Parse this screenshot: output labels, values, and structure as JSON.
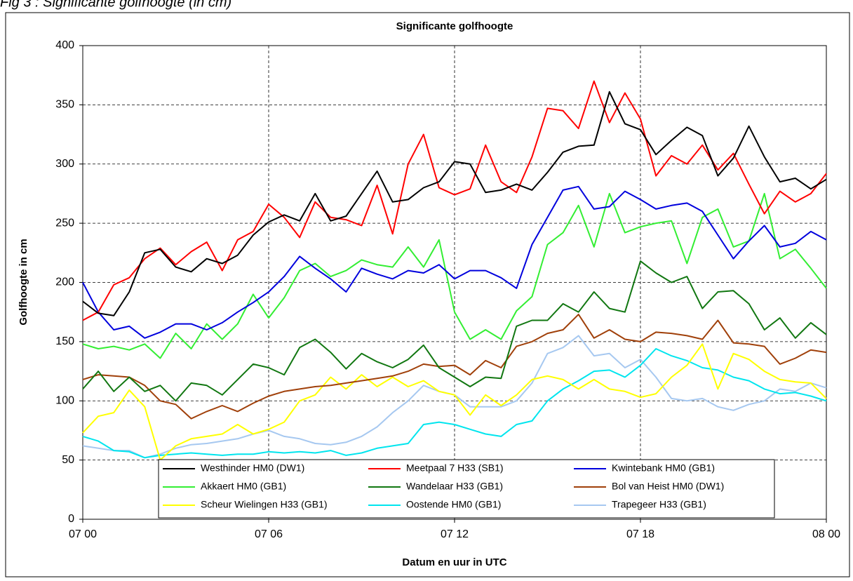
{
  "chart_data": {
    "type": "line",
    "caption": "Fig 3 : Significante golfhoogte (in cm)",
    "title": "Significante golfhoogte",
    "x_label": "Datum en uur in UTC",
    "y_label": "Golfhoogte in cm",
    "xlim": [
      0,
      24
    ],
    "xticks": [
      {
        "value": 0,
        "label": "07 00"
      },
      {
        "value": 6,
        "label": "07 06"
      },
      {
        "value": 12,
        "label": "07 12"
      },
      {
        "value": 18,
        "label": "07 18"
      },
      {
        "value": 24,
        "label": "08 00"
      }
    ],
    "ylim": [
      0,
      400
    ],
    "yticks": [
      0,
      50,
      100,
      150,
      200,
      250,
      300,
      350,
      400
    ],
    "grid": true,
    "legend": "bottom",
    "x": [
      0,
      0.5,
      1,
      1.5,
      2,
      2.5,
      3,
      3.5,
      4,
      4.5,
      5,
      5.5,
      6,
      6.5,
      7,
      7.5,
      8,
      8.5,
      9,
      9.5,
      10,
      10.5,
      11,
      11.5,
      12,
      12.5,
      13,
      13.5,
      14,
      14.5,
      15,
      15.5,
      16,
      16.5,
      17,
      17.5,
      18,
      18.5,
      19,
      19.5,
      20,
      20.5,
      21,
      21.5,
      22,
      22.5,
      23,
      23.5,
      24
    ],
    "series": [
      {
        "name": "Westhinder HM0 (DW1)",
        "color": "#000000",
        "values": [
          184,
          174,
          172,
          192,
          225,
          228,
          213,
          209,
          220,
          216,
          223,
          240,
          251,
          257,
          252,
          275,
          252,
          256,
          275,
          294,
          268,
          270,
          280,
          285,
          302,
          300,
          276,
          278,
          283,
          278,
          293,
          310,
          315,
          316,
          361,
          334,
          329,
          308,
          320,
          331,
          324,
          290,
          305,
          332,
          306,
          285,
          288,
          279,
          287
        ]
      },
      {
        "name": "Meetpaal 7 H33 (SB1)",
        "color": "#ff0000",
        "values": [
          168,
          175,
          198,
          204,
          220,
          229,
          215,
          226,
          234,
          210,
          236,
          243,
          266,
          255,
          238,
          268,
          255,
          253,
          248,
          282,
          241,
          300,
          325,
          280,
          274,
          279,
          316,
          285,
          276,
          306,
          347,
          345,
          330,
          370,
          335,
          360,
          338,
          290,
          307,
          300,
          316,
          295,
          309,
          283,
          258,
          277,
          268,
          275,
          292
        ]
      },
      {
        "name": "Kwintebank HM0 (GB1)",
        "color": "#0000dd",
        "values": [
          200,
          175,
          160,
          163,
          153,
          158,
          165,
          165,
          160,
          166,
          175,
          183,
          192,
          205,
          222,
          212,
          203,
          192,
          212,
          207,
          203,
          210,
          208,
          215,
          203,
          210,
          210,
          204,
          195,
          232,
          255,
          278,
          281,
          262,
          264,
          277,
          270,
          262,
          265,
          267,
          260,
          240,
          220,
          235,
          248,
          230,
          233,
          243,
          236
        ]
      },
      {
        "name": "Akkaert HM0 (GB1)",
        "color": "#33ee33",
        "values": [
          148,
          144,
          146,
          143,
          148,
          136,
          157,
          144,
          165,
          152,
          165,
          190,
          170,
          187,
          210,
          216,
          205,
          210,
          219,
          215,
          213,
          230,
          213,
          236,
          175,
          152,
          160,
          152,
          176,
          188,
          232,
          242,
          265,
          230,
          275,
          242,
          247,
          250,
          252,
          216,
          255,
          262,
          230,
          235,
          275,
          220,
          228,
          212,
          195
        ]
      },
      {
        "name": "Wandelaar H33 (GB1)",
        "color": "#117711",
        "values": [
          110,
          125,
          108,
          120,
          108,
          113,
          100,
          115,
          113,
          105,
          118,
          131,
          128,
          122,
          145,
          152,
          141,
          127,
          140,
          133,
          128,
          135,
          147,
          128,
          120,
          112,
          120,
          119,
          163,
          168,
          168,
          182,
          175,
          192,
          178,
          175,
          218,
          208,
          200,
          205,
          178,
          192,
          193,
          182,
          160,
          170,
          153,
          166,
          156
        ]
      },
      {
        "name": "Bol van Heist HM0 (DW1)",
        "color": "#a0400a",
        "values": [
          118,
          122,
          121,
          120,
          113,
          100,
          97,
          85,
          91,
          96,
          91,
          98,
          104,
          108,
          110,
          112,
          113,
          115,
          117,
          119,
          121,
          125,
          131,
          129,
          130,
          122,
          134,
          128,
          146,
          150,
          157,
          160,
          173,
          153,
          160,
          152,
          150,
          158,
          157,
          155,
          152,
          168,
          149,
          148,
          146,
          131,
          136,
          143,
          141
        ]
      },
      {
        "name": "Scheur Wielingen H33 (GB1)",
        "color": "#ffff00",
        "values": [
          73,
          87,
          90,
          109,
          95,
          50,
          62,
          68,
          70,
          72,
          80,
          72,
          76,
          82,
          100,
          105,
          120,
          110,
          122,
          112,
          120,
          112,
          117,
          108,
          105,
          88,
          105,
          96,
          105,
          118,
          121,
          118,
          110,
          118,
          110,
          108,
          103,
          106,
          120,
          130,
          148,
          110,
          140,
          135,
          125,
          118,
          116,
          115,
          102
        ]
      },
      {
        "name": "Oostende HM0 (GB1)",
        "color": "#00e5ee",
        "values": [
          70,
          66,
          58,
          57,
          52,
          54,
          55,
          56,
          55,
          54,
          55,
          55,
          57,
          56,
          57,
          56,
          58,
          54,
          56,
          60,
          62,
          64,
          80,
          82,
          80,
          76,
          72,
          70,
          80,
          83,
          100,
          110,
          117,
          125,
          126,
          120,
          130,
          144,
          138,
          134,
          128,
          126,
          120,
          117,
          110,
          106,
          107,
          104,
          100
        ]
      },
      {
        "name": "Trapegeer H33 (GB1)",
        "color": "#a6c8f0",
        "values": [
          62,
          60,
          58,
          58,
          52,
          55,
          60,
          63,
          64,
          66,
          68,
          72,
          75,
          70,
          68,
          64,
          63,
          65,
          70,
          78,
          90,
          100,
          113,
          108,
          105,
          95,
          95,
          95,
          100,
          115,
          140,
          145,
          155,
          138,
          140,
          128,
          135,
          120,
          102,
          100,
          102,
          95,
          92,
          97,
          100,
          110,
          108,
          115,
          111
        ]
      }
    ]
  }
}
